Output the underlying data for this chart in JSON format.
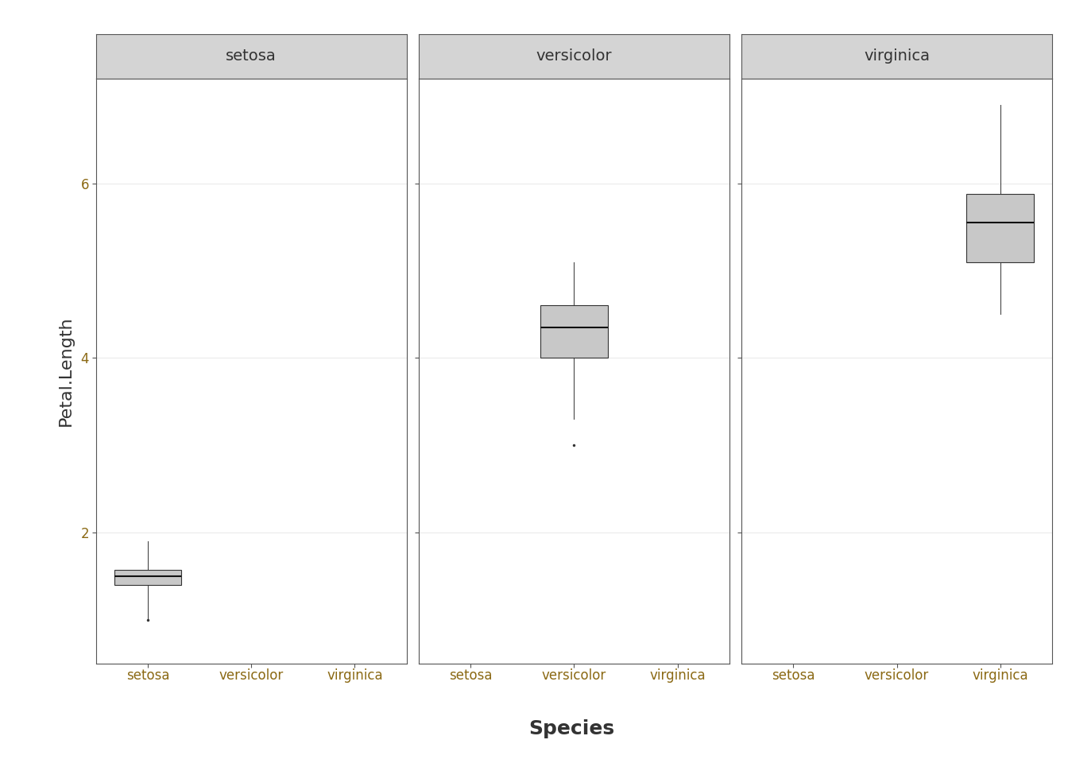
{
  "species": [
    "setosa",
    "versicolor",
    "virginica"
  ],
  "xlabel": "Species",
  "ylabel": "Petal.Length",
  "ylim": [
    0.5,
    7.2
  ],
  "yticks": [
    2,
    4,
    6
  ],
  "box_color": "#c8c8c8",
  "box_edge_color": "#333333",
  "median_color": "#111111",
  "whisker_color": "#333333",
  "outlier_color": "#333333",
  "background_color": "#ffffff",
  "panel_background": "#ffffff",
  "facet_header_bg": "#d4d4d4",
  "facet_header_border": "#555555",
  "facet_header_text_color": "#333333",
  "grid_color": "#ebebeb",
  "tick_label_color": "#8b6914",
  "axis_label_color": "#333333",
  "spine_color": "#555555",
  "axis_label_fontsize": 16,
  "tick_fontsize": 12,
  "facet_label_fontsize": 14,
  "setosa_stats": {
    "q1": 1.4,
    "median": 1.5,
    "q3": 1.575,
    "whisker_low": 1.0,
    "whisker_high": 1.9,
    "outliers": [
      1.0
    ]
  },
  "versicolor_stats": {
    "q1": 4.0,
    "median": 4.35,
    "q3": 4.6,
    "whisker_low": 3.3,
    "whisker_high": 5.1,
    "outliers": [
      3.0
    ]
  },
  "virginica_stats": {
    "q1": 5.1,
    "median": 5.55,
    "q3": 5.875,
    "whisker_low": 4.5,
    "whisker_high": 6.9,
    "outliers": []
  }
}
